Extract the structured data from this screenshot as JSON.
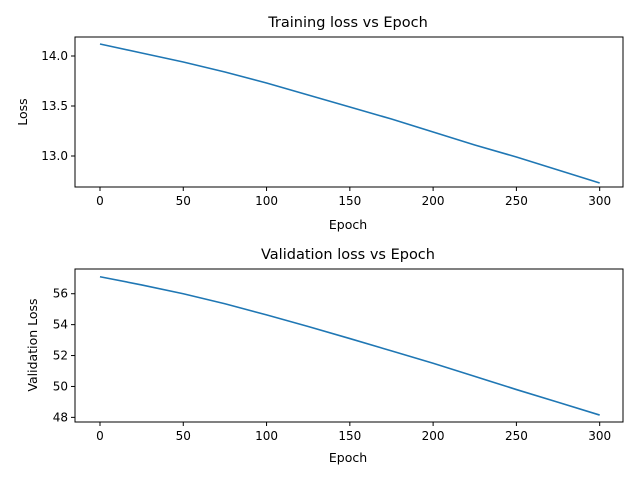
{
  "chart_data": [
    {
      "type": "line",
      "title": "Training loss vs Epoch",
      "xlabel": "Epoch",
      "ylabel": "Loss",
      "xlim": [
        -15,
        314
      ],
      "ylim": [
        12.69,
        14.19
      ],
      "xticks": [
        0,
        50,
        100,
        150,
        200,
        250,
        300
      ],
      "yticks": [
        13.0,
        13.5,
        14.0
      ],
      "ytick_labels": [
        "13.0",
        "13.5",
        "14.0"
      ],
      "grid": false,
      "color": "#1f77b4",
      "series": [
        {
          "x": [
            0,
            25,
            50,
            75,
            100,
            125,
            150,
            175,
            200,
            225,
            250,
            275,
            300
          ],
          "values": [
            14.12,
            14.03,
            13.94,
            13.84,
            13.73,
            13.61,
            13.49,
            13.37,
            13.24,
            13.11,
            12.99,
            12.86,
            12.73
          ]
        }
      ]
    },
    {
      "type": "line",
      "title": "Validation loss vs Epoch",
      "xlabel": "Epoch",
      "ylabel": "Validation Loss",
      "xlim": [
        -15,
        314
      ],
      "ylim": [
        47.7,
        57.6
      ],
      "xticks": [
        0,
        50,
        100,
        150,
        200,
        250,
        300
      ],
      "yticks": [
        48,
        50,
        52,
        54,
        56
      ],
      "ytick_labels": [
        "48",
        "50",
        "52",
        "54",
        "56"
      ],
      "grid": false,
      "color": "#1f77b4",
      "series": [
        {
          "x": [
            0,
            25,
            50,
            75,
            100,
            125,
            150,
            175,
            200,
            225,
            250,
            275,
            300
          ],
          "values": [
            57.1,
            56.57,
            56.0,
            55.35,
            54.63,
            53.88,
            53.1,
            52.3,
            51.5,
            50.65,
            49.8,
            48.98,
            48.15
          ]
        }
      ]
    }
  ]
}
